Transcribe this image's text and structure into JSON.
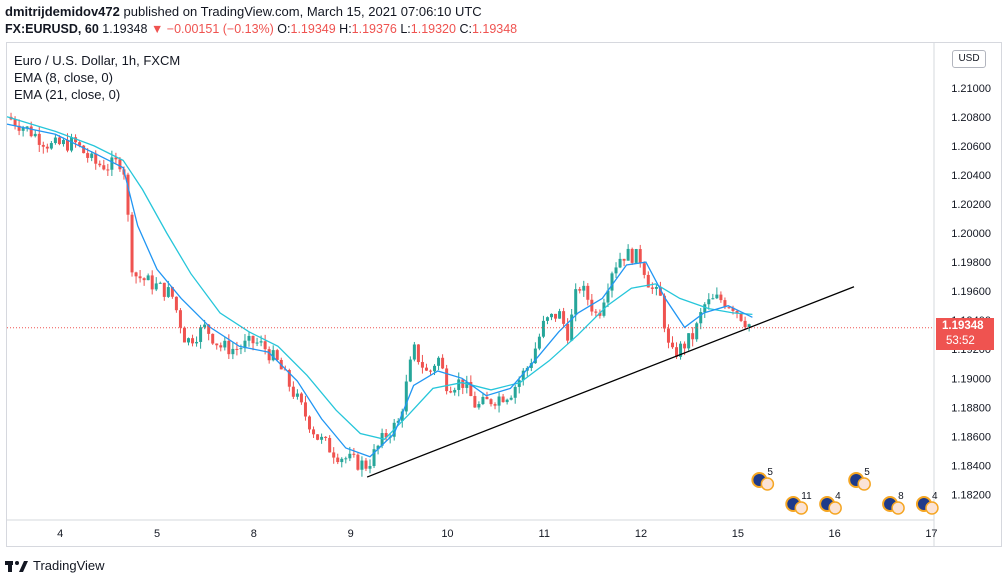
{
  "header": {
    "author": "dmitrijdemidov472",
    "published_text": "published on TradingView.com, March 15, 2021 07:06:10 UTC",
    "symbol": "FX:EURUSD, 60",
    "last": "1.19348",
    "change": "▼ −0.00151 (−0.13%)",
    "o_label": "O:",
    "o_value": "1.19349",
    "h_label": "H:",
    "h_value": "1.19376",
    "l_label": "L:",
    "l_value": "1.19320",
    "c_label": "C:",
    "c_value": "1.19348"
  },
  "legend": {
    "title": "Euro / U.S. Dollar, 1h, FXCM",
    "ema_fast": "EMA (8, close, 0)",
    "ema_slow": "EMA (21, close, 0)"
  },
  "currency_label": "USD",
  "price_tag": {
    "price": "1.19348",
    "countdown": "53:52"
  },
  "footer": {
    "brand": "TradingView"
  },
  "colors": {
    "up": "#26a69a",
    "down": "#ef5350",
    "ema_fast": "#2196f3",
    "ema_slow": "#26c6da",
    "trendline": "#000000",
    "last_line": "#ef5350"
  },
  "chart_data": {
    "type": "candlestick",
    "title": "Euro / U.S. Dollar, 1h, FXCM",
    "y_axis": {
      "min": 1.181,
      "max": 1.2115,
      "ticks": [
        "1.21000",
        "1.20800",
        "1.20600",
        "1.20400",
        "1.20200",
        "1.20000",
        "1.19800",
        "1.19600",
        "1.19400",
        "1.19200",
        "1.19000",
        "1.18800",
        "1.18600",
        "1.18400",
        "1.18200"
      ]
    },
    "x_axis": {
      "ticks": [
        {
          "label": "4",
          "day": 0.55
        },
        {
          "label": "5",
          "day": 1.55
        },
        {
          "label": "8",
          "day": 2.55
        },
        {
          "label": "9",
          "day": 3.55
        },
        {
          "label": "10",
          "day": 4.55
        },
        {
          "label": "11",
          "day": 5.55
        },
        {
          "label": "12",
          "day": 6.55
        },
        {
          "label": "15",
          "day": 7.55
        },
        {
          "label": "16",
          "day": 8.55
        },
        {
          "label": "17",
          "day": 9.55
        }
      ]
    },
    "close_path": [
      [
        0.0,
        1.208
      ],
      [
        0.2,
        1.2072
      ],
      [
        0.45,
        1.206
      ],
      [
        0.7,
        1.2062
      ],
      [
        0.9,
        1.2048
      ],
      [
        1.05,
        1.2046
      ],
      [
        1.2,
        1.205
      ],
      [
        1.25,
        1.201
      ],
      [
        1.3,
        1.1972
      ],
      [
        1.5,
        1.1965
      ],
      [
        1.7,
        1.1958
      ],
      [
        1.85,
        1.1925
      ],
      [
        2.05,
        1.1935
      ],
      [
        2.2,
        1.1922
      ],
      [
        2.35,
        1.192
      ],
      [
        2.55,
        1.1925
      ],
      [
        2.65,
        1.1922
      ],
      [
        2.8,
        1.191
      ],
      [
        3.0,
        1.1885
      ],
      [
        3.2,
        1.186
      ],
      [
        3.4,
        1.1848
      ],
      [
        3.6,
        1.1842
      ],
      [
        3.72,
        1.184
      ],
      [
        3.9,
        1.186
      ],
      [
        4.05,
        1.187
      ],
      [
        4.2,
        1.192
      ],
      [
        4.35,
        1.1902
      ],
      [
        4.45,
        1.1915
      ],
      [
        4.55,
        1.1895
      ],
      [
        4.7,
        1.1898
      ],
      [
        4.85,
        1.188
      ],
      [
        5.0,
        1.1885
      ],
      [
        5.2,
        1.189
      ],
      [
        5.4,
        1.191
      ],
      [
        5.55,
        1.1938
      ],
      [
        5.7,
        1.1945
      ],
      [
        5.8,
        1.193
      ],
      [
        5.9,
        1.1965
      ],
      [
        6.0,
        1.1955
      ],
      [
        6.1,
        1.1942
      ],
      [
        6.25,
        1.1975
      ],
      [
        6.35,
        1.1985
      ],
      [
        6.45,
        1.1985
      ],
      [
        6.55,
        1.1982
      ],
      [
        6.65,
        1.1962
      ],
      [
        6.75,
        1.1955
      ],
      [
        6.85,
        1.1915
      ],
      [
        6.95,
        1.192
      ],
      [
        7.1,
        1.193
      ],
      [
        7.2,
        1.195
      ],
      [
        7.35,
        1.1955
      ],
      [
        7.5,
        1.195
      ],
      [
        7.62,
        1.194
      ],
      [
        7.7,
        1.1935
      ]
    ],
    "ema_fast_path": [
      [
        0.0,
        1.2075
      ],
      [
        0.5,
        1.2068
      ],
      [
        0.9,
        1.2055
      ],
      [
        1.2,
        1.2045
      ],
      [
        1.35,
        1.2005
      ],
      [
        1.55,
        1.1975
      ],
      [
        1.8,
        1.1955
      ],
      [
        2.1,
        1.1935
      ],
      [
        2.4,
        1.1922
      ],
      [
        2.7,
        1.1918
      ],
      [
        3.0,
        1.1898
      ],
      [
        3.25,
        1.1872
      ],
      [
        3.5,
        1.1852
      ],
      [
        3.75,
        1.1846
      ],
      [
        4.0,
        1.1862
      ],
      [
        4.2,
        1.1895
      ],
      [
        4.45,
        1.1905
      ],
      [
        4.7,
        1.19
      ],
      [
        4.95,
        1.1888
      ],
      [
        5.2,
        1.1893
      ],
      [
        5.45,
        1.1912
      ],
      [
        5.7,
        1.1932
      ],
      [
        5.9,
        1.1945
      ],
      [
        6.15,
        1.1955
      ],
      [
        6.4,
        1.1978
      ],
      [
        6.6,
        1.198
      ],
      [
        6.8,
        1.1955
      ],
      [
        7.0,
        1.1935
      ],
      [
        7.2,
        1.1945
      ],
      [
        7.45,
        1.195
      ],
      [
        7.7,
        1.1942
      ]
    ],
    "ema_slow_path": [
      [
        0.0,
        1.208
      ],
      [
        0.5,
        1.207
      ],
      [
        0.9,
        1.206
      ],
      [
        1.2,
        1.205
      ],
      [
        1.4,
        1.203
      ],
      [
        1.65,
        1.2
      ],
      [
        1.9,
        1.1972
      ],
      [
        2.2,
        1.1945
      ],
      [
        2.5,
        1.1932
      ],
      [
        2.8,
        1.1922
      ],
      [
        3.1,
        1.1902
      ],
      [
        3.4,
        1.1878
      ],
      [
        3.65,
        1.1862
      ],
      [
        3.9,
        1.1858
      ],
      [
        4.15,
        1.1875
      ],
      [
        4.4,
        1.1893
      ],
      [
        4.7,
        1.1897
      ],
      [
        5.0,
        1.1892
      ],
      [
        5.3,
        1.1897
      ],
      [
        5.6,
        1.1912
      ],
      [
        5.9,
        1.193
      ],
      [
        6.2,
        1.195
      ],
      [
        6.45,
        1.1962
      ],
      [
        6.7,
        1.1965
      ],
      [
        6.95,
        1.1955
      ],
      [
        7.25,
        1.1948
      ],
      [
        7.5,
        1.1945
      ],
      [
        7.7,
        1.1944
      ]
    ],
    "trendline": {
      "start": [
        3.72,
        1.1832
      ],
      "end": [
        8.75,
        1.1963
      ]
    },
    "last_price": 1.19348,
    "event_markers": [
      {
        "label": "5",
        "day": 8.0,
        "row": "top"
      },
      {
        "label": "11",
        "day": 8.35,
        "row": "bottom"
      },
      {
        "label": "4",
        "day": 8.7,
        "row": "bottom"
      },
      {
        "label": "5",
        "day": 9.0,
        "row": "top"
      },
      {
        "label": "8",
        "day": 9.35,
        "row": "bottom"
      },
      {
        "label": "4",
        "day": 9.7,
        "row": "bottom"
      }
    ]
  }
}
